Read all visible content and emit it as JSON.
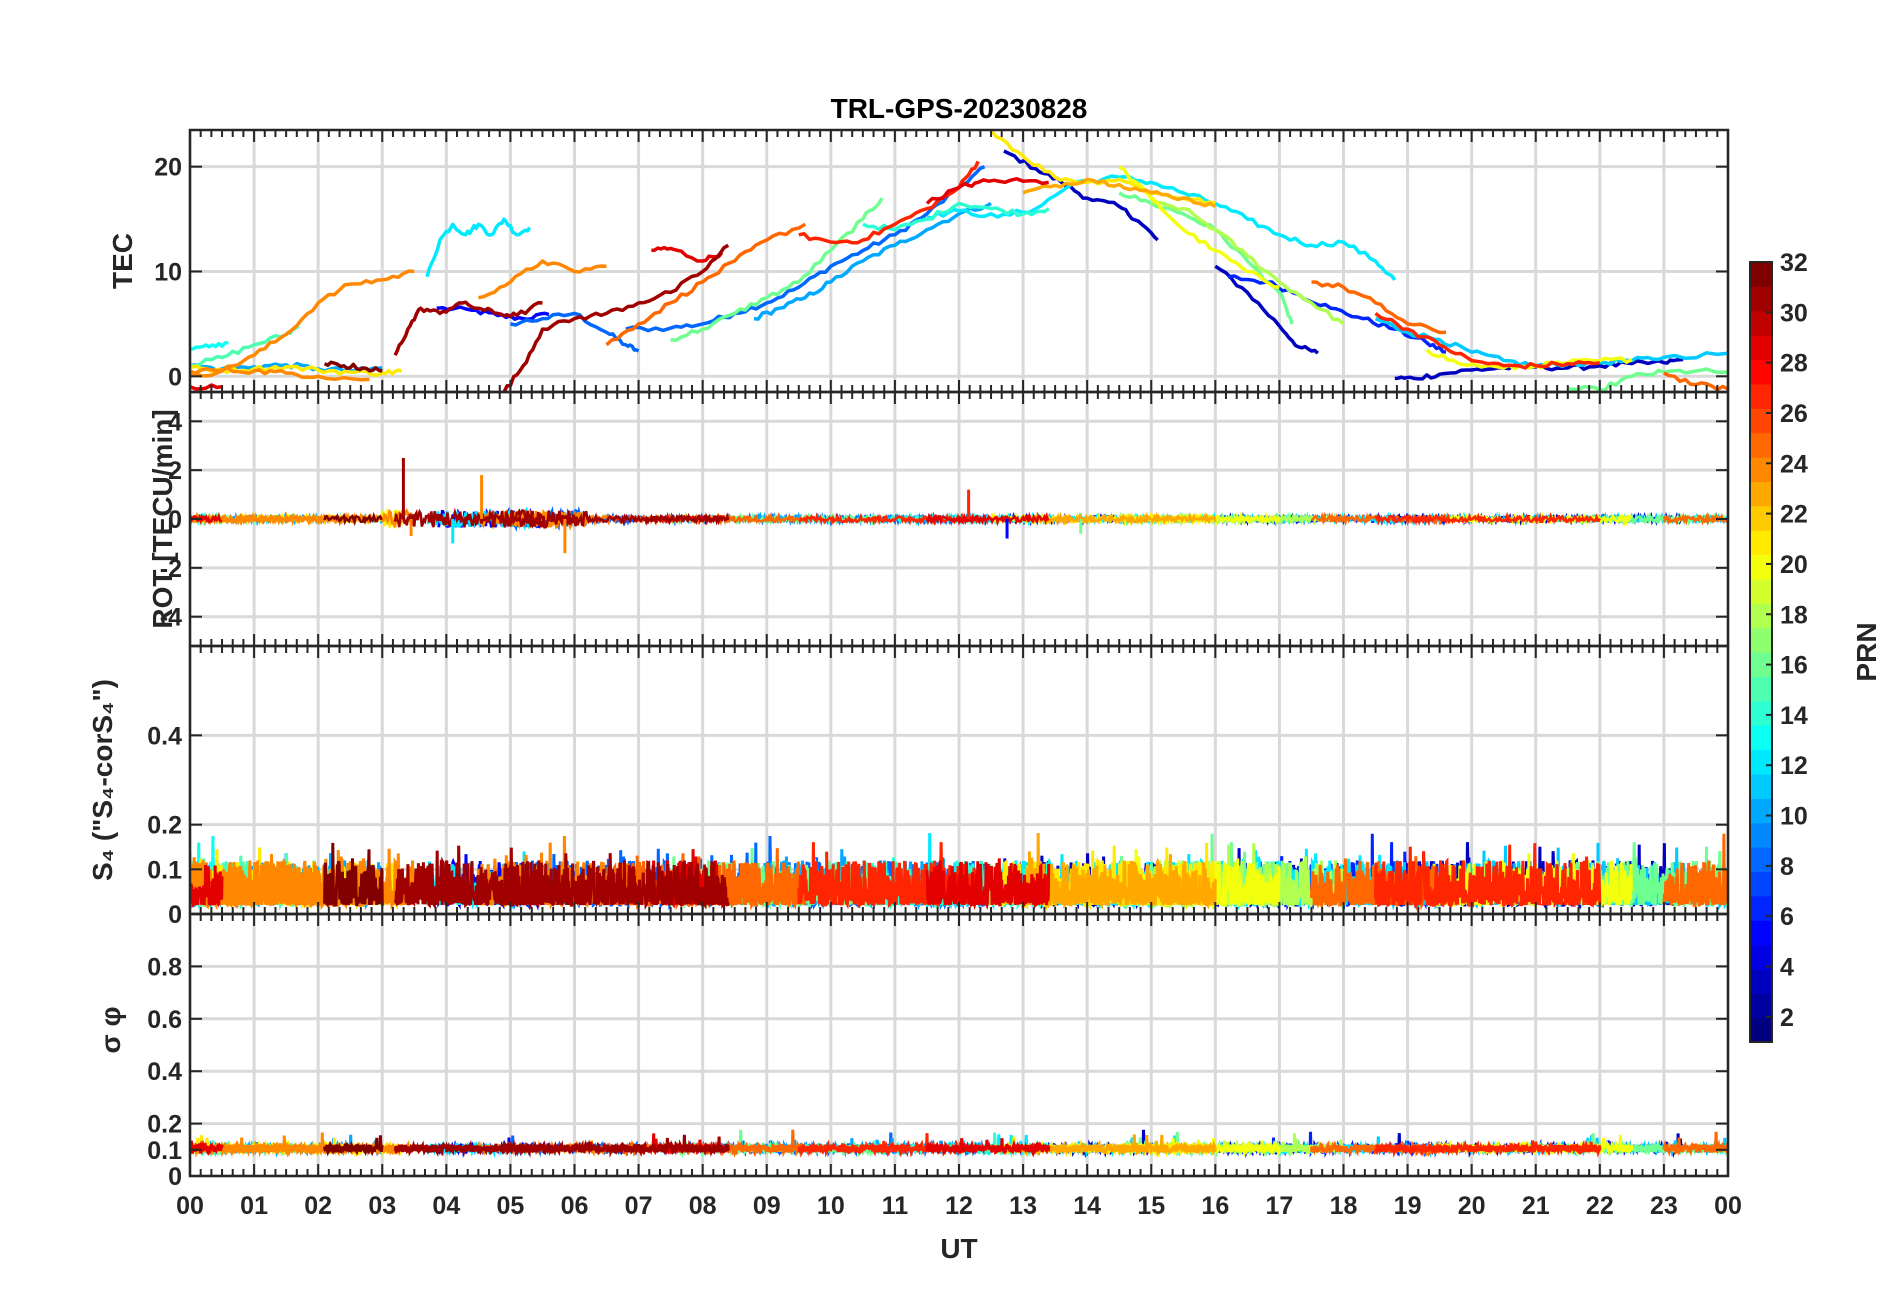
{
  "title": "TRL-GPS-20230828",
  "chart_data": {
    "type": "line",
    "title": "TRL-GPS-20230828",
    "xlabel": "UT",
    "x_tick_labels": [
      "00",
      "01",
      "02",
      "03",
      "04",
      "05",
      "06",
      "07",
      "08",
      "09",
      "10",
      "11",
      "12",
      "13",
      "14",
      "15",
      "16",
      "17",
      "18",
      "19",
      "20",
      "21",
      "22",
      "23",
      "00"
    ],
    "xlim": [
      0,
      24
    ],
    "grid": true,
    "colorbar": {
      "label": "PRN",
      "range": [
        1,
        32
      ],
      "ticks": [
        2,
        4,
        6,
        8,
        10,
        12,
        14,
        16,
        18,
        20,
        22,
        24,
        26,
        28,
        30,
        32
      ],
      "colormap": "jet"
    },
    "panels": [
      {
        "id": "tec",
        "ylabel": "TEC",
        "ylim": [
          -1.5,
          23.5
        ],
        "yticks": [
          0,
          10,
          20
        ],
        "series": [
          {
            "prn": 5,
            "x": [
              3.85,
              4.4,
              4.8,
              5.2,
              5.6
            ],
            "y": [
              6.5,
              6.3,
              5.8,
              5.5,
              5.9
            ]
          },
          {
            "prn": 8,
            "x": [
              5.0,
              5.5,
              6.0,
              6.5,
              6.8,
              7.0
            ],
            "y": [
              5.0,
              5.5,
              6.0,
              4.2,
              3.0,
              2.4
            ]
          },
          {
            "prn": 8,
            "x": [
              6.8,
              7.5,
              8.0,
              8.5,
              9.0,
              9.5,
              10.0,
              10.5,
              11.0,
              11.5,
              12.0,
              12.4
            ],
            "y": [
              4.5,
              4.6,
              5.0,
              6.0,
              7.0,
              8.5,
              10.5,
              12.0,
              13.5,
              15.5,
              18.0,
              20.0
            ]
          },
          {
            "prn": 3,
            "x": [
              12.7,
              13.2,
              13.6,
              14.0,
              14.5,
              14.8,
              15.1
            ],
            "y": [
              21.5,
              19.8,
              18.5,
              17.0,
              16.2,
              14.8,
              13.0
            ]
          },
          {
            "prn": 3,
            "x": [
              16.0,
              16.5,
              17.0,
              17.3,
              17.6
            ],
            "y": [
              10.5,
              8.0,
              4.8,
              2.8,
              2.2
            ]
          },
          {
            "prn": 6,
            "x": [
              16.2,
              16.8,
              17.3,
              17.8,
              18.3,
              18.8,
              19.3,
              19.6
            ],
            "y": [
              9.5,
              9.0,
              7.8,
              6.5,
              5.5,
              4.5,
              3.2,
              2.3
            ]
          },
          {
            "prn": 3,
            "x": [
              18.8,
              19.1,
              19.5,
              20.0,
              20.5,
              21.0,
              21.5,
              22.0,
              22.5,
              23.0,
              23.3
            ],
            "y": [
              -0.2,
              -0.2,
              0.2,
              0.6,
              0.8,
              0.9,
              0.8,
              1.0,
              1.2,
              1.3,
              1.6
            ]
          },
          {
            "prn": 10,
            "x": [
              8.8,
              9.2,
              9.6,
              10.0,
              10.5,
              11.0,
              11.5,
              12.0,
              12.5
            ],
            "y": [
              5.5,
              6.5,
              7.5,
              9.0,
              11.0,
              12.5,
              14.0,
              15.5,
              16.5
            ]
          },
          {
            "prn": 10,
            "x": [
              0.0,
              0.5,
              1.0,
              1.5,
              2.0,
              2.6,
              3.0
            ],
            "y": [
              1.0,
              0.7,
              0.9,
              1.1,
              0.7,
              0.5,
              0.8
            ]
          },
          {
            "prn": 11,
            "x": [
              18.5,
              19.0,
              19.5,
              20.0,
              20.5,
              21.0,
              21.5,
              22.0,
              22.5,
              23.0,
              24.0
            ],
            "y": [
              5.5,
              4.2,
              3.5,
              2.3,
              1.5,
              1.0,
              1.2,
              1.3,
              1.5,
              1.8,
              2.2
            ]
          },
          {
            "prn": 12,
            "x": [
              3.7,
              3.9,
              4.1,
              4.3,
              4.5,
              4.7,
              4.9,
              5.1,
              5.3
            ],
            "y": [
              9.5,
              13.0,
              14.5,
              13.5,
              14.5,
              13.5,
              15.0,
              13.5,
              14.2
            ]
          },
          {
            "prn": 12,
            "x": [
              11.5,
              12.0,
              12.6,
              13.2,
              13.8,
              14.5,
              15.0,
              15.5,
              16.0,
              16.5,
              17.0,
              17.5,
              18.0,
              18.5,
              18.8
            ],
            "y": [
              15.2,
              15.8,
              15.2,
              16.0,
              18.5,
              19.0,
              18.5,
              17.5,
              16.5,
              15.0,
              13.5,
              12.5,
              12.8,
              11.0,
              9.2
            ]
          },
          {
            "prn": 13,
            "x": [
              0.0,
              0.3,
              0.6
            ],
            "y": [
              2.6,
              2.8,
              3.2
            ]
          },
          {
            "prn": 14,
            "x": [
              10.5,
              11.0,
              11.5,
              12.0,
              12.5,
              13.0,
              13.4
            ],
            "y": [
              14.5,
              14.0,
              15.0,
              16.5,
              16.0,
              15.5,
              16.0
            ]
          },
          {
            "prn": 15,
            "x": [
              0.0,
              0.5,
              1.0,
              1.5,
              1.7
            ],
            "y": [
              1.0,
              1.8,
              3.0,
              4.0,
              4.8
            ]
          },
          {
            "prn": 16,
            "x": [
              7.5,
              8.0,
              8.5,
              9.0,
              9.5,
              10.0,
              10.5,
              10.8
            ],
            "y": [
              3.5,
              4.5,
              6.0,
              7.5,
              9.0,
              12.0,
              15.0,
              17.0
            ]
          },
          {
            "prn": 16,
            "x": [
              14.5,
              15.0,
              15.5,
              16.0,
              16.5,
              17.0,
              17.2
            ],
            "y": [
              17.5,
              16.5,
              15.5,
              14.0,
              11.0,
              8.0,
              5.0
            ]
          },
          {
            "prn": 16,
            "x": [
              21.5,
              22.0,
              22.5,
              23.0,
              23.5,
              24.0
            ],
            "y": [
              -1.2,
              -1.3,
              0.0,
              0.4,
              0.5,
              0.4
            ]
          },
          {
            "prn": 18,
            "x": [
              15.0,
              15.5,
              16.0,
              16.5,
              17.0,
              17.5,
              18.0
            ],
            "y": [
              16.5,
              16.0,
              14.0,
              11.5,
              9.0,
              7.0,
              5.0
            ]
          },
          {
            "prn": 20,
            "x": [
              14.5,
              15.0,
              15.5,
              16.0,
              16.5,
              17.0
            ],
            "y": [
              20.0,
              17.0,
              14.0,
              12.0,
              10.0,
              8.5
            ]
          },
          {
            "prn": 20,
            "x": [
              19.3,
              19.8,
              20.5,
              21.0,
              21.5,
              22.0,
              22.5
            ],
            "y": [
              2.5,
              1.2,
              0.8,
              1.0,
              1.3,
              1.5,
              1.6
            ]
          },
          {
            "prn": 21,
            "x": [
              12.5,
              13.0,
              13.5,
              14.0,
              14.5,
              15.0,
              15.5,
              16.0
            ],
            "y": [
              23.5,
              21.0,
              19.0,
              18.5,
              18.8,
              17.5,
              17.0,
              16.5
            ]
          },
          {
            "prn": 21,
            "x": [
              0.0,
              0.5,
              1.0,
              1.5,
              2.0,
              2.5,
              3.0,
              3.3
            ],
            "y": [
              0.8,
              0.6,
              0.7,
              0.9,
              0.6,
              0.4,
              0.3,
              0.5
            ]
          },
          {
            "prn": 23,
            "x": [
              13.0,
              13.5,
              14.0,
              14.5,
              15.0,
              15.5,
              16.0
            ],
            "y": [
              17.5,
              18.2,
              18.8,
              18.3,
              17.5,
              17.0,
              16.2
            ]
          },
          {
            "prn": 24,
            "x": [
              0.0,
              0.5,
              1.0,
              1.5,
              2.0,
              2.5,
              3.0,
              3.5
            ],
            "y": [
              0.0,
              0.5,
              2.0,
              4.0,
              7.0,
              8.8,
              9.2,
              10.0
            ]
          },
          {
            "prn": 24,
            "x": [
              4.5,
              5.0,
              5.5,
              6.0,
              6.5
            ],
            "y": [
              7.5,
              9.0,
              11.0,
              10.0,
              10.5
            ]
          },
          {
            "prn": 24,
            "x": [
              0.0,
              0.5,
              1.0,
              1.5,
              2.0,
              2.8
            ],
            "y": [
              0.5,
              0.6,
              0.5,
              0.3,
              0.0,
              -0.3
            ]
          },
          {
            "prn": 25,
            "x": [
              6.5,
              7.0,
              7.5,
              8.0,
              8.5,
              9.0,
              9.6
            ],
            "y": [
              3.0,
              5.0,
              7.0,
              9.0,
              11.0,
              13.0,
              14.5
            ]
          },
          {
            "prn": 25,
            "x": [
              17.5,
              18.0,
              18.5,
              19.0,
              19.6
            ],
            "y": [
              9.0,
              8.5,
              7.0,
              5.0,
              4.2
            ]
          },
          {
            "prn": 25,
            "x": [
              23.0,
              23.5,
              24.0
            ],
            "y": [
              0.3,
              -0.8,
              -1.2
            ]
          },
          {
            "prn": 27,
            "x": [
              9.5,
              10.0,
              10.5,
              11.0,
              11.5,
              12.0,
              12.3
            ],
            "y": [
              13.5,
              12.8,
              13.0,
              14.5,
              16.0,
              18.0,
              20.5
            ]
          },
          {
            "prn": 27,
            "x": [
              18.5,
              19.0,
              19.5,
              20.0,
              20.5,
              21.0,
              21.5,
              22.0
            ],
            "y": [
              6.0,
              4.5,
              3.0,
              1.5,
              1.0,
              1.0,
              1.2,
              1.3
            ]
          },
          {
            "prn": 29,
            "x": [
              7.2,
              7.5,
              8.0,
              8.3
            ],
            "y": [
              12.0,
              12.2,
              11.0,
              11.8
            ]
          },
          {
            "prn": 29,
            "x": [
              11.5,
              12.0,
              12.3,
              12.8,
              13.4
            ],
            "y": [
              16.5,
              18.0,
              18.5,
              18.7,
              18.5
            ]
          },
          {
            "prn": 29,
            "x": [
              0.0,
              0.5
            ],
            "y": [
              -1.0,
              -1.0
            ]
          },
          {
            "prn": 31,
            "x": [
              4.9,
              5.2,
              5.5,
              6.0,
              6.5,
              7.0,
              7.5,
              8.0,
              8.4
            ],
            "y": [
              -1.5,
              1.0,
              4.5,
              5.5,
              6.0,
              7.0,
              8.0,
              10.0,
              12.5
            ]
          },
          {
            "prn": 31,
            "x": [
              3.2,
              3.4,
              3.6,
              3.9,
              4.2,
              4.5,
              4.8,
              5.1,
              5.5
            ],
            "y": [
              2.0,
              4.5,
              6.5,
              6.0,
              7.0,
              6.5,
              6.0,
              5.8,
              7.0
            ]
          },
          {
            "prn": 32,
            "x": [
              2.1,
              2.4,
              2.7,
              3.0
            ],
            "y": [
              1.2,
              1.0,
              0.8,
              0.5
            ]
          }
        ]
      },
      {
        "id": "rot",
        "ylabel": "ROT [TECU/min]",
        "ylim": [
          -5.2,
          5.2
        ],
        "yticks": [
          -4,
          -2,
          0,
          2,
          4
        ],
        "spikes": [
          {
            "prn": 31,
            "x": 3.33,
            "y": 2.5
          },
          {
            "prn": 24,
            "x": 4.55,
            "y": 1.8
          },
          {
            "prn": 12,
            "x": 4.1,
            "y": -1.0
          },
          {
            "prn": 24,
            "x": 5.85,
            "y": -1.4
          },
          {
            "prn": 27,
            "x": 12.15,
            "y": 1.2
          },
          {
            "prn": 5,
            "x": 12.75,
            "y": -0.8
          },
          {
            "prn": 16,
            "x": 13.9,
            "y": -0.6
          },
          {
            "prn": 24,
            "x": 3.45,
            "y": -0.7
          }
        ]
      },
      {
        "id": "s4",
        "ylabel": "S₄ (\"S₄-corS₄\")",
        "ylim": [
          0,
          0.6
        ],
        "yticks": [
          0,
          0.1,
          0.2,
          0.4
        ],
        "y_tick_labels": [
          "0",
          "0.1",
          "0.2",
          "0.4"
        ]
      },
      {
        "id": "sigma",
        "ylabel": "σ φ",
        "ylim": [
          0,
          1
        ],
        "yticks": [
          0,
          0.1,
          0.2,
          0.4,
          0.6,
          0.8
        ],
        "y_tick_labels": [
          "0",
          "0.1",
          "0.2",
          "0.4",
          "0.6",
          "0.8"
        ]
      }
    ]
  }
}
